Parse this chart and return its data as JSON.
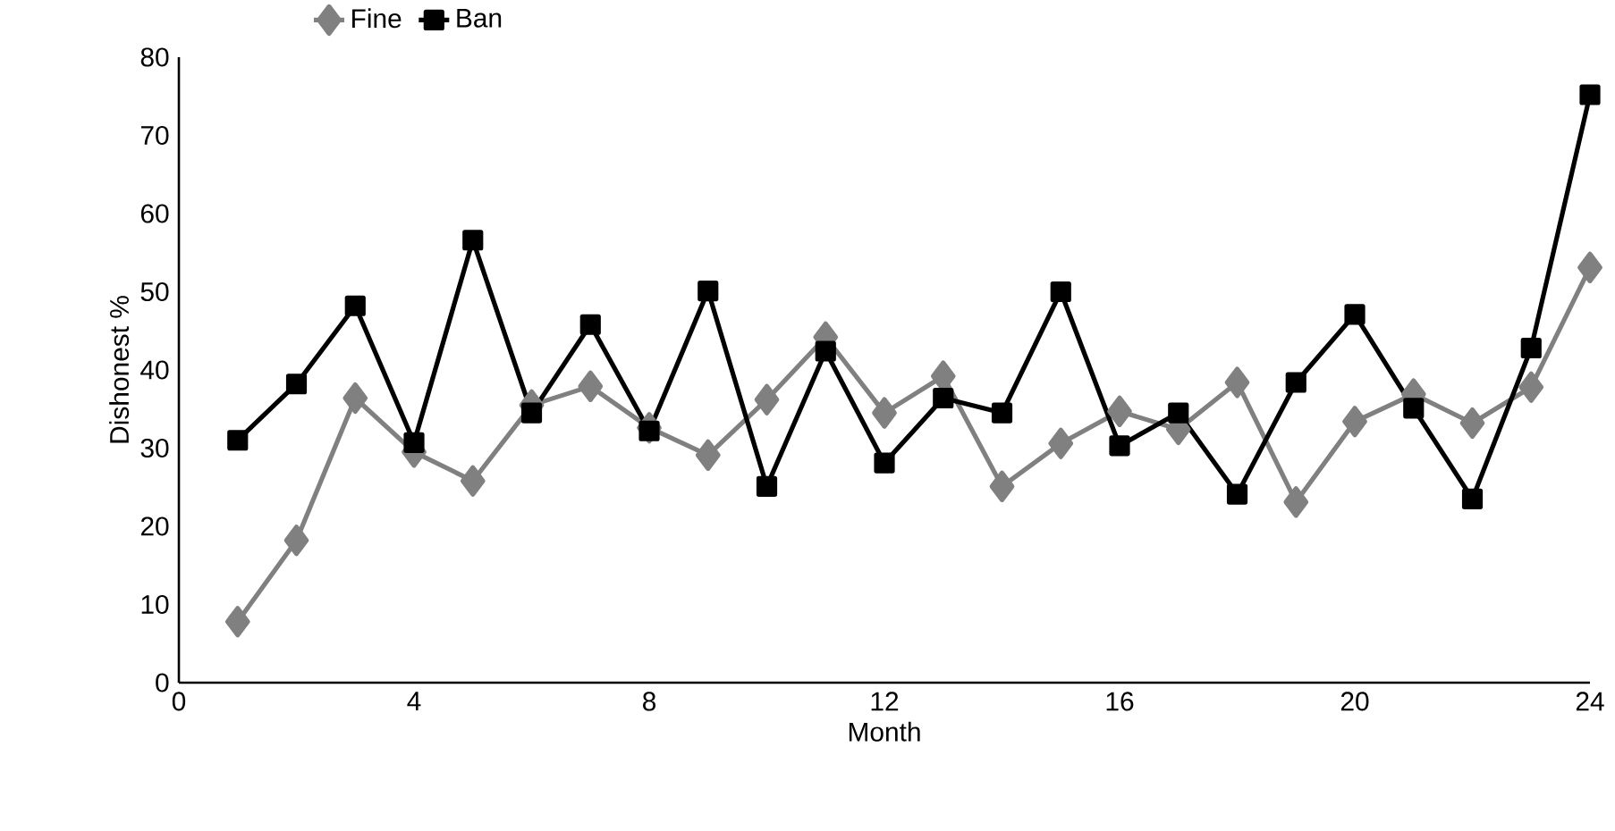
{
  "chart_data": {
    "type": "line",
    "xlabel": "Month",
    "ylabel": "Dishonest %",
    "x": [
      1,
      2,
      3,
      4,
      5,
      6,
      7,
      8,
      9,
      10,
      11,
      12,
      13,
      14,
      15,
      16,
      17,
      18,
      19,
      20,
      21,
      22,
      23,
      24
    ],
    "series": [
      {
        "name": "Fine",
        "color": "#808080",
        "marker": "diamond",
        "values": [
          7.8,
          18.2,
          36.4,
          29.5,
          25.8,
          35.5,
          37.9,
          32.6,
          29.1,
          36.2,
          44.2,
          34.5,
          39.2,
          25.1,
          30.6,
          34.7,
          32.4,
          38.4,
          23.1,
          33.4,
          36.9,
          33.2,
          37.8,
          53.1
        ]
      },
      {
        "name": "Ban",
        "color": "#000000",
        "marker": "square",
        "values": [
          31.0,
          38.2,
          48.2,
          30.7,
          56.6,
          34.5,
          45.8,
          32.2,
          50.1,
          25.1,
          42.4,
          28.1,
          36.4,
          34.5,
          50.0,
          30.3,
          34.5,
          24.1,
          38.4,
          47.1,
          35.1,
          23.5,
          42.8,
          75.2
        ]
      }
    ],
    "xlim": [
      0,
      24
    ],
    "xticks": [
      0,
      4,
      8,
      12,
      16,
      20,
      24
    ],
    "ylim": [
      0,
      80
    ],
    "yticks": [
      0,
      10,
      20,
      30,
      40,
      50,
      60,
      70,
      80
    ],
    "grid": false,
    "legend": "top",
    "line_style": "solid"
  }
}
